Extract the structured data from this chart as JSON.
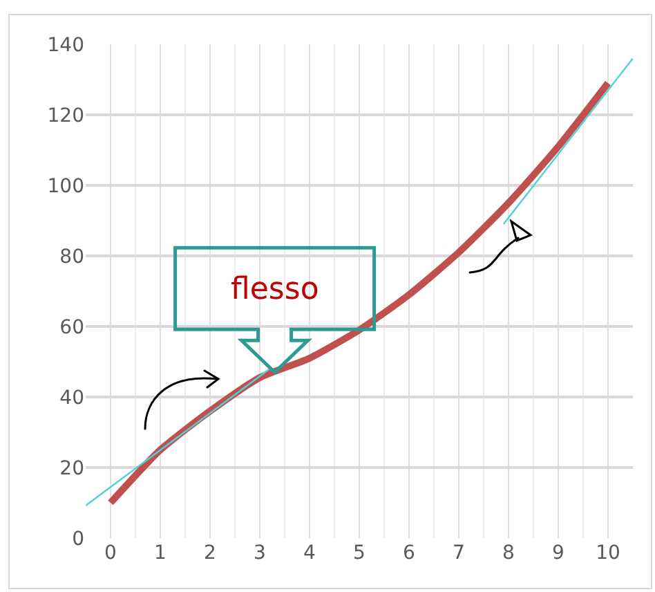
{
  "chart_data": {
    "type": "line",
    "x": [
      0,
      1,
      2,
      3,
      4,
      5,
      6,
      7,
      8,
      9,
      10
    ],
    "series": [
      {
        "color": "#c0504d",
        "values": [
          10,
          25,
          36,
          45.5,
          51,
          59,
          69,
          81,
          95,
          111,
          129
        ]
      },
      {
        "color": "#4fd1d9",
        "x": [
          -0.5,
          3.2
        ],
        "values": [
          9.2,
          48
        ]
      },
      {
        "color": "#4fd1d9",
        "x": [
          7.9,
          10.5
        ],
        "values": [
          89,
          136
        ]
      }
    ],
    "xlim": [
      -0.5,
      10.5
    ],
    "xticks": [
      0,
      1,
      2,
      3,
      4,
      5,
      6,
      7,
      8,
      9,
      10
    ],
    "ylim": [
      0,
      140
    ],
    "yticks": [
      0,
      20,
      40,
      60,
      80,
      100,
      120,
      140
    ],
    "grid": true,
    "annotations": [
      {
        "text": "flesso",
        "x": 3.3,
        "y": 47
      }
    ]
  }
}
